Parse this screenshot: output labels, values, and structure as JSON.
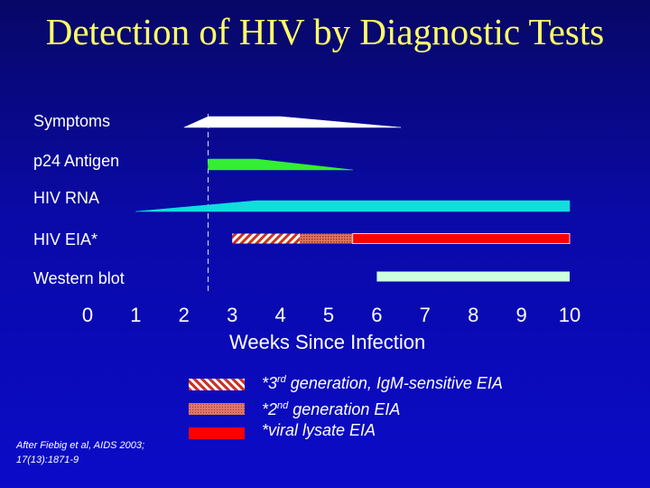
{
  "chart_data": {
    "type": "timeline",
    "title": "Detection of HIV by Diagnostic Tests",
    "xlabel": "Weeks Since Infection",
    "x_ticks": [
      0,
      1,
      2,
      3,
      4,
      5,
      6,
      7,
      8,
      9,
      10
    ],
    "xlim": [
      0,
      10
    ],
    "reference_week": 2.5,
    "rows": [
      {
        "label": "Symptoms",
        "color": "#ffffff",
        "profile": [
          [
            2.0,
            0.0
          ],
          [
            2.5,
            1.0
          ],
          [
            4.0,
            1.0
          ],
          [
            6.5,
            0.0
          ]
        ]
      },
      {
        "label": "p24 Antigen",
        "color": "#33ee33",
        "profile": [
          [
            2.5,
            1.0
          ],
          [
            3.5,
            1.0
          ],
          [
            5.5,
            0.0
          ]
        ]
      },
      {
        "label": "HIV RNA",
        "color": "#11dddd",
        "profile": [
          [
            1.0,
            0.0
          ],
          [
            3.5,
            1.0
          ],
          [
            10.0,
            1.0
          ]
        ]
      },
      {
        "label": "HIV EIA*",
        "segments": [
          {
            "start": 3.0,
            "end": 4.4,
            "color": "#cc3322",
            "pattern": "hatch",
            "legend_index": 0
          },
          {
            "start": 4.4,
            "end": 5.5,
            "color": "#cc4433",
            "pattern": "dots",
            "legend_index": 1
          },
          {
            "start": 5.5,
            "end": 10.0,
            "color": "#ff0000",
            "pattern": "solid",
            "legend_index": 2
          }
        ]
      },
      {
        "label": "Western blot",
        "segments": [
          {
            "start": 6.0,
            "end": 10.0,
            "color": "#ccffdd",
            "pattern": "solid"
          }
        ]
      }
    ],
    "legend": [
      {
        "prefix": "*3",
        "sup": "rd",
        "suffix": " generation, IgM-sensitive EIA",
        "pattern": "hatch"
      },
      {
        "prefix": "*2",
        "sup": "nd",
        "suffix": " generation EIA",
        "pattern": "dots"
      },
      {
        "prefix": "*viral lysate EIA",
        "sup": "",
        "suffix": "",
        "pattern": "solid"
      }
    ]
  },
  "citation": "After Fiebig et al, AIDS 2003; 17(13):1871-9"
}
